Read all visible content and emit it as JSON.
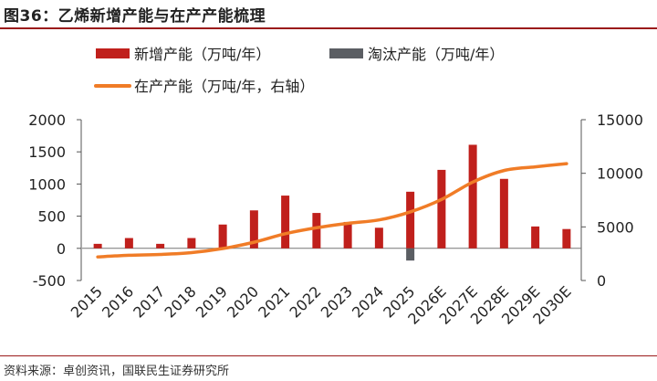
{
  "header": {
    "title": "图36：乙烯新增产能与在产产能梳理"
  },
  "footer": {
    "source": "资料来源：卓创资讯，国联民生证券研究所"
  },
  "colors": {
    "new_capacity": "#c0201c",
    "retired_capacity": "#5b5e63",
    "in_production": "#f07c27",
    "brand": "#9b1b1b"
  },
  "chart_data": {
    "type": "bar",
    "categories": [
      "2015",
      "2016",
      "2017",
      "2018",
      "2019",
      "2020",
      "2021",
      "2022",
      "2023",
      "2024",
      "2025",
      "2026E",
      "2027E",
      "2028E",
      "2029E",
      "2030E"
    ],
    "series": [
      {
        "name": "新增产能（万吨/年）",
        "kind": "bar",
        "axis": "left",
        "values": [
          70,
          160,
          70,
          160,
          370,
          590,
          820,
          550,
          410,
          320,
          880,
          1220,
          1610,
          1080,
          340,
          300
        ]
      },
      {
        "name": "淘汰产能（万吨/年）",
        "kind": "bar",
        "axis": "left",
        "values": [
          0,
          0,
          0,
          0,
          0,
          0,
          0,
          0,
          0,
          0,
          -190,
          0,
          0,
          0,
          0,
          0
        ]
      },
      {
        "name": "在产产能（万吨/年，右轴）",
        "kind": "line",
        "axis": "right",
        "values": [
          2200,
          2350,
          2430,
          2600,
          2980,
          3570,
          4360,
          4920,
          5330,
          5650,
          6400,
          7560,
          9180,
          10260,
          10600,
          10900
        ]
      }
    ],
    "y_left": {
      "ylim": [
        -500,
        2000
      ],
      "ticks": [
        "-500",
        "0",
        "500",
        "1000",
        "1500",
        "2000"
      ]
    },
    "y_right": {
      "ylim": [
        0,
        15000
      ],
      "ticks": [
        "0",
        "5000",
        "10000",
        "15000"
      ]
    },
    "legend_placement": "top-left",
    "grid": false
  }
}
